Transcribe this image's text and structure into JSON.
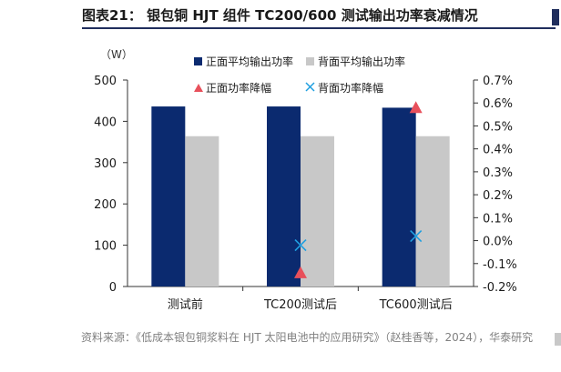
{
  "figure": {
    "title": "图表21：  银包铜 HJT 组件 TC200/600 测试输出功率衰减情况",
    "source_note": "资料来源：《低成本银包铜浆料在 HJT 太阳电池中的应用研究》（赵桂香等，2024），华泰研究"
  },
  "chart_data": {
    "type": "bar",
    "categories": [
      "测试前",
      "TC200测试后",
      "TC600测试后"
    ],
    "ylabel": "（W）",
    "ylim": [
      0,
      500
    ],
    "yticks": [
      0,
      100,
      200,
      300,
      400,
      500
    ],
    "y2lim": [
      -0.2,
      0.7
    ],
    "y2ticks": [
      "-0.2%",
      "-0.1%",
      "0.0%",
      "0.1%",
      "0.2%",
      "0.3%",
      "0.4%",
      "0.5%",
      "0.6%",
      "0.7%"
    ],
    "grid": false,
    "legend_position": "top",
    "series": [
      {
        "name": "正面平均输出功率",
        "type": "bar",
        "axis": "left",
        "color": "#0b2a6f",
        "values": [
          436,
          436,
          433
        ]
      },
      {
        "name": "背面平均输出功率",
        "type": "bar",
        "axis": "left",
        "color": "#c8c8c8",
        "values": [
          364,
          364,
          364
        ]
      },
      {
        "name": "正面功率降幅",
        "type": "scatter",
        "marker": "triangle",
        "axis": "right",
        "color": "#e8505b",
        "values": [
          null,
          -0.14,
          0.58
        ]
      },
      {
        "name": "背面功率降幅",
        "type": "scatter",
        "marker": "x",
        "axis": "right",
        "color": "#1f9fe0",
        "values": [
          null,
          -0.02,
          0.02
        ]
      }
    ]
  }
}
